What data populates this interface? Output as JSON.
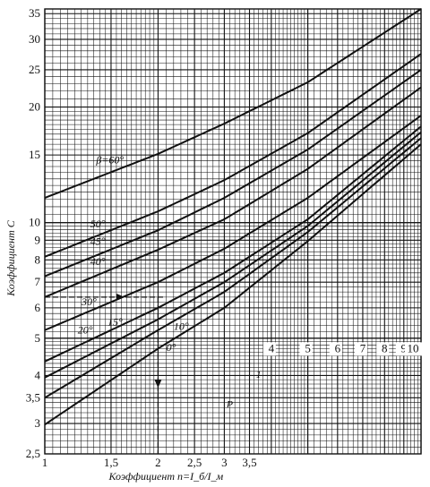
{
  "chart_data": {
    "type": "line",
    "xscale": "log",
    "yscale": "log",
    "xlim": [
      1,
      10
    ],
    "ylim": [
      2.5,
      36
    ],
    "xlabel": "Коэффициент n=I_б/I_м",
    "ylabel": "Коэффициент C",
    "grid": true,
    "x_ticks_bottom": [
      {
        "v": 1,
        "t": "1"
      },
      {
        "v": 1.5,
        "t": "1,5"
      },
      {
        "v": 2,
        "t": "2"
      },
      {
        "v": 2.5,
        "t": "2,5"
      },
      {
        "v": 3,
        "t": "3"
      },
      {
        "v": 3.5,
        "t": "3,5"
      }
    ],
    "x_ticks_upper": [
      {
        "v": 4,
        "t": "4"
      },
      {
        "v": 5,
        "t": "5"
      },
      {
        "v": 6,
        "t": "6"
      },
      {
        "v": 7,
        "t": "7"
      },
      {
        "v": 8,
        "t": "8"
      },
      {
        "v": 9,
        "t": "9"
      },
      {
        "v": 10,
        "t": "10"
      }
    ],
    "y_ticks": [
      {
        "v": 2.5,
        "t": "2,5"
      },
      {
        "v": 3,
        "t": "3"
      },
      {
        "v": 3.5,
        "t": "3,5"
      },
      {
        "v": 4,
        "t": "4"
      },
      {
        "v": 5,
        "t": "5"
      },
      {
        "v": 6,
        "t": "6"
      },
      {
        "v": 7,
        "t": "7"
      },
      {
        "v": 8,
        "t": "8"
      },
      {
        "v": 9,
        "t": "9"
      },
      {
        "v": 10,
        "t": "10"
      },
      {
        "v": 15,
        "t": "15"
      },
      {
        "v": 20,
        "t": "20"
      },
      {
        "v": 25,
        "t": "25"
      },
      {
        "v": 30,
        "t": "30"
      },
      {
        "v": 35,
        "t": "35"
      }
    ],
    "series": [
      {
        "name": "β=60°",
        "x": [
          1,
          2,
          3,
          5,
          10
        ],
        "y": [
          11.6,
          15.1,
          18.1,
          23.2,
          36
        ]
      },
      {
        "name": "50°",
        "x": [
          1,
          2,
          3,
          5,
          10
        ],
        "y": [
          8.15,
          10.7,
          12.9,
          17.1,
          27.5
        ]
      },
      {
        "name": "45°",
        "x": [
          1,
          2,
          3,
          5,
          10
        ],
        "y": [
          7.25,
          9.55,
          11.6,
          15.5,
          25.0
        ]
      },
      {
        "name": "40°",
        "x": [
          1,
          2,
          3,
          5,
          10
        ],
        "y": [
          6.4,
          8.5,
          10.2,
          13.8,
          22.5
        ]
      },
      {
        "name": "30°",
        "x": [
          1,
          2,
          3,
          5,
          10
        ],
        "y": [
          5.25,
          7.0,
          8.55,
          11.6,
          19.0
        ]
      },
      {
        "name": "20°",
        "x": [
          1,
          2,
          3,
          5,
          10
        ],
        "y": [
          4.35,
          6.0,
          7.4,
          10.2,
          17.8
        ]
      },
      {
        "name": "15°",
        "x": [
          1,
          2,
          3,
          5,
          10
        ],
        "y": [
          3.95,
          5.6,
          7.0,
          9.8,
          17.2
        ]
      },
      {
        "name": "10°",
        "x": [
          1,
          2,
          3,
          5,
          10
        ],
        "y": [
          3.5,
          5.25,
          6.6,
          9.45,
          16.6
        ]
      },
      {
        "name": "0°",
        "x": [
          1,
          2,
          3,
          5,
          10
        ],
        "y": [
          2.98,
          4.7,
          6.0,
          8.95,
          16.0
        ]
      }
    ],
    "annotations": [
      {
        "text": "P",
        "x": 3.1,
        "y": 3.3
      },
      {
        "text": "1",
        "x": 3.7,
        "y": 3.95
      }
    ],
    "example_path": {
      "c": 6.4,
      "n": 2
    }
  }
}
